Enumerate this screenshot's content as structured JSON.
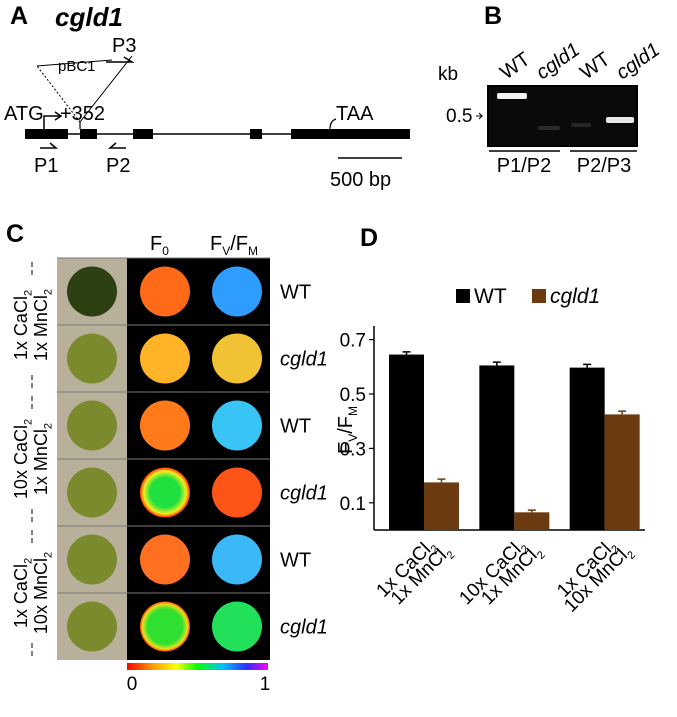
{
  "panel_a": {
    "letter": "A",
    "gene": "cgld1",
    "primer_p3": "P3",
    "vector": "pBC1",
    "start_codon": "ATG",
    "insertion_site": "+352",
    "stop_codon": "TAA",
    "primer_p1": "P1",
    "primer_p2": "P2",
    "scale_bar": "500 bp"
  },
  "panel_b": {
    "letter": "B",
    "lanes": [
      "WT",
      "cgld1",
      "WT",
      "cgld1"
    ],
    "unit": "kb",
    "marker": "0.5",
    "primer_pairs": [
      "P1/P2",
      "P2/P3"
    ]
  },
  "panel_c": {
    "letter": "C",
    "column_f0": [
      "F",
      "0"
    ],
    "column_fvfm": [
      "F",
      "V",
      "/F",
      "M"
    ],
    "rows": [
      "WT",
      "cgld1",
      "WT",
      "cgld1",
      "WT",
      "cgld1"
    ],
    "conditions": [
      [
        [
          "1x CaCl",
          "2"
        ],
        [
          "1x MnCl",
          "2"
        ]
      ],
      [
        [
          "10x CaCl",
          "2"
        ],
        [
          "1x MnCl",
          "2"
        ]
      ],
      [
        [
          "1x CaCl",
          "2"
        ],
        [
          "10x MnCl",
          "2"
        ]
      ]
    ],
    "colorbar_min": 0,
    "colorbar_max": 1
  },
  "chart_data": {
    "type": "bar",
    "panel": "D",
    "ylabel": [
      "F",
      "V",
      "/F",
      "M"
    ],
    "categories": [
      [
        [
          "1x CaCl",
          "2"
        ],
        [
          "1x MnCl",
          "2"
        ]
      ],
      [
        [
          "10x CaCl",
          "2"
        ],
        [
          "1x MnCl",
          "2"
        ]
      ],
      [
        [
          "1x CaCl",
          "2"
        ],
        [
          "10x MnCl",
          "2"
        ]
      ]
    ],
    "series": [
      {
        "name": "WT",
        "color": "#000000",
        "values": [
          0.645,
          0.605,
          0.597
        ],
        "errors": [
          0.01,
          0.012,
          0.012
        ]
      },
      {
        "name": "cgld1",
        "color": "#6b3a10",
        "values": [
          0.175,
          0.065,
          0.425
        ],
        "errors": [
          0.012,
          0.008,
          0.012
        ]
      }
    ],
    "ylim": [
      0,
      0.75
    ],
    "yticks": [
      0.1,
      0.3,
      0.5,
      0.7
    ],
    "legend": "top"
  }
}
